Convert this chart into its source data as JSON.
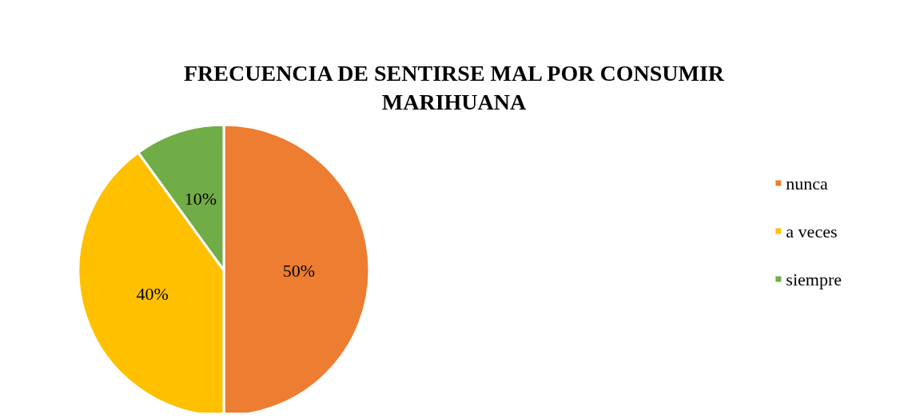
{
  "chart_data": {
    "type": "pie",
    "title": "FRECUENCIA DE SENTIRSE MAL POR CONSUMIR\nMARIHUANA",
    "categories": [
      "nunca",
      "a veces",
      "siempre"
    ],
    "values": [
      50,
      40,
      10
    ],
    "colors": [
      "#ed7d31",
      "#ffc000",
      "#70ad47"
    ],
    "value_labels": [
      "50%",
      "40%",
      "10%"
    ],
    "legend": "right"
  }
}
